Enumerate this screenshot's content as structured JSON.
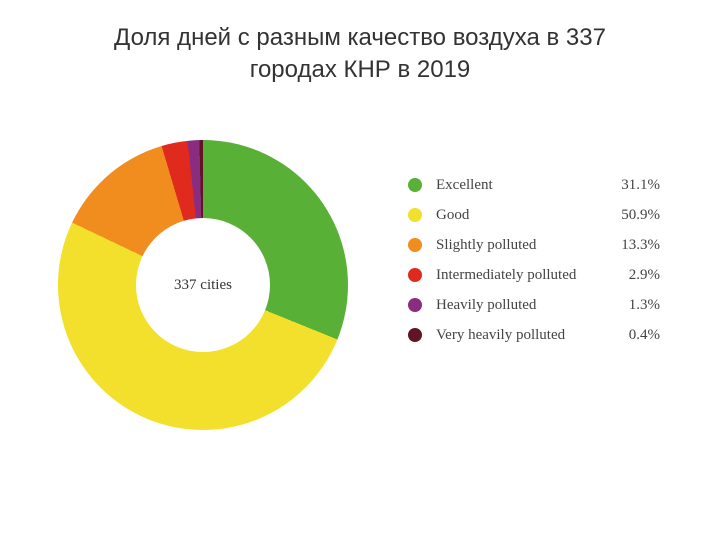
{
  "title_line1": "Доля дней с разным качество воздуха в 337",
  "title_line2": "городах КНР в 2019",
  "chart": {
    "type": "pie",
    "donut": true,
    "inner_radius_ratio": 0.46,
    "start_angle_deg": 0,
    "background_color": "#ffffff",
    "center_label": "337 cities",
    "center_label_fontsize": 15,
    "center_label_color": "#333333",
    "legend_font_family": "Georgia, serif",
    "legend_fontsize": 15,
    "title_fontsize": 24,
    "title_color": "#333333",
    "slices": [
      {
        "label": "Excellent",
        "value": 31.1,
        "value_text": "31.1%",
        "color": "#59b037"
      },
      {
        "label": "Good",
        "value": 50.9,
        "value_text": "50.9%",
        "color": "#f2e02c"
      },
      {
        "label": "Slightly polluted",
        "value": 13.3,
        "value_text": "13.3%",
        "color": "#f18c1e"
      },
      {
        "label": "Intermediately polluted",
        "value": 2.9,
        "value_text": "2.9%",
        "color": "#e12a1e"
      },
      {
        "label": "Heavily polluted",
        "value": 1.3,
        "value_text": "1.3%",
        "color": "#8b2d7e"
      },
      {
        "label": "Very heavily polluted",
        "value": 0.4,
        "value_text": "0.4%",
        "color": "#611524"
      }
    ]
  }
}
